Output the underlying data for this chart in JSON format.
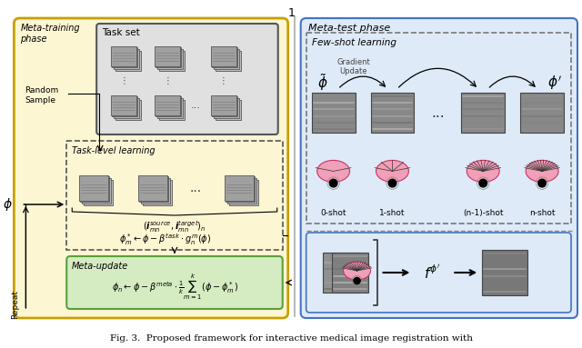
{
  "figure_bg": "#ffffff",
  "left_panel_bg": "#fdf6d3",
  "left_panel_border": "#c8a000",
  "task_set_bg": "#e0e0e0",
  "task_set_border": "#555555",
  "meta_update_bg": "#d5ecc2",
  "meta_update_border": "#5a9e3a",
  "right_panel_bg": "#deeaf7",
  "right_panel_border": "#4472c4",
  "few_shot_border": "#777777",
  "bottom_right_border": "#777777",
  "caption": "Fig. 3.  Proposed framework for interactive medical image registration with",
  "shots": [
    "0-shot",
    "1-shot",
    "(n-1)-shot",
    "n-shot"
  ]
}
